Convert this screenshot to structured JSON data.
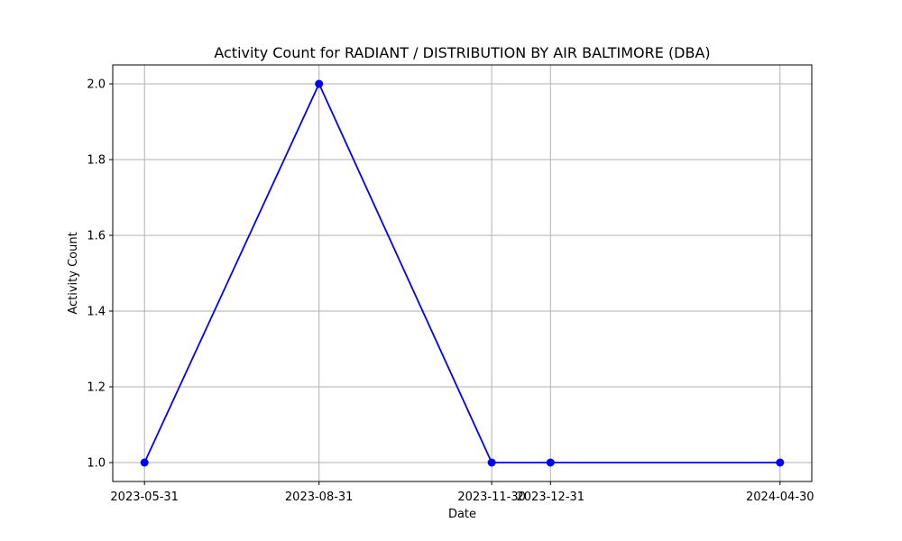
{
  "chart_data": {
    "type": "line",
    "title": "Activity Count for RADIANT  / DISTRIBUTION BY AIR BALTIMORE (DBA)",
    "xlabel": "Date",
    "ylabel": "Activity Count",
    "x": [
      "2023-05-31",
      "2023-08-31",
      "2023-11-30",
      "2023-12-31",
      "2024-04-30"
    ],
    "series": [
      {
        "values": [
          1,
          2,
          1,
          1,
          1
        ],
        "color": "#0000ff",
        "marker": "circle"
      }
    ],
    "yticks": [
      "1.0",
      "1.2",
      "1.4",
      "1.6",
      "1.8",
      "2.0"
    ],
    "ylim": [
      0.95,
      2.05
    ],
    "grid": true,
    "legend": "none"
  }
}
